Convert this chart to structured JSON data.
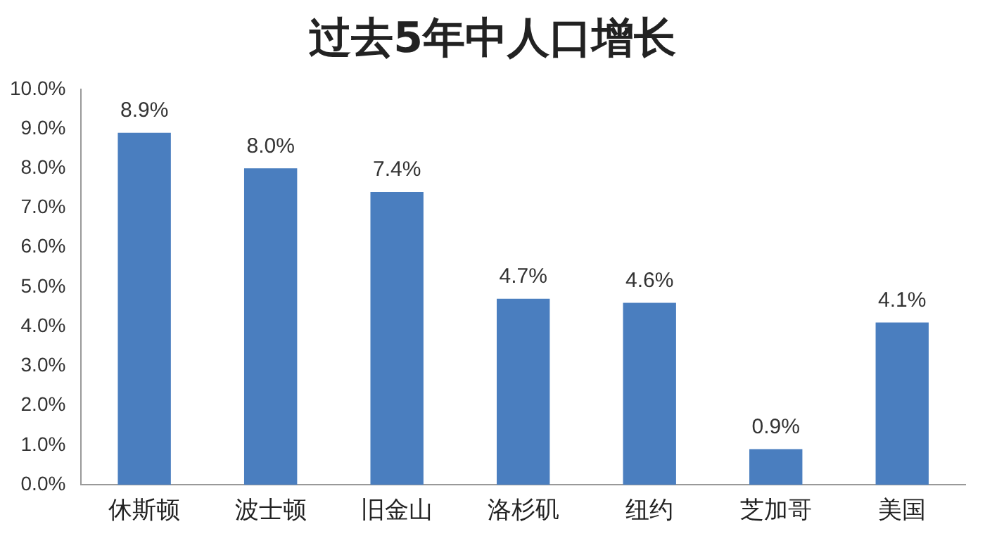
{
  "chart_data": {
    "type": "bar",
    "title": "过去5年中人口增长",
    "categories": [
      "休斯顿",
      "波士顿",
      "旧金山",
      "洛杉矶",
      "纽约",
      "芝加哥",
      "美国"
    ],
    "values": [
      8.9,
      8.0,
      7.4,
      4.7,
      4.6,
      0.9,
      4.1
    ],
    "value_labels": [
      "8.9%",
      "8.0%",
      "7.4%",
      "4.7%",
      "4.6%",
      "0.9%",
      "4.1%"
    ],
    "color": "#4a7ebf",
    "ylim": [
      0,
      10
    ],
    "yticks": [
      {
        "value": 0,
        "label": "0.0%"
      },
      {
        "value": 1,
        "label": "1.0%"
      },
      {
        "value": 2,
        "label": "2.0%"
      },
      {
        "value": 3,
        "label": "3.0%"
      },
      {
        "value": 4,
        "label": "4.0%"
      },
      {
        "value": 5,
        "label": "5.0%"
      },
      {
        "value": 6,
        "label": "6.0%"
      },
      {
        "value": 7,
        "label": "7.0%"
      },
      {
        "value": 8,
        "label": "8.0%"
      },
      {
        "value": 9,
        "label": "9.0%"
      },
      {
        "value": 10,
        "label": "10.0%"
      }
    ],
    "grid": false,
    "legend": false
  }
}
